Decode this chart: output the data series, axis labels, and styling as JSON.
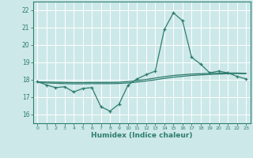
{
  "x": [
    0,
    1,
    2,
    3,
    4,
    5,
    6,
    7,
    8,
    9,
    10,
    11,
    12,
    13,
    14,
    15,
    16,
    17,
    18,
    19,
    20,
    21,
    22,
    23
  ],
  "y_main": [
    17.9,
    17.7,
    17.55,
    17.6,
    17.3,
    17.5,
    17.55,
    16.45,
    16.2,
    16.6,
    17.7,
    18.05,
    18.3,
    18.5,
    20.9,
    21.85,
    21.4,
    19.3,
    18.9,
    18.4,
    18.5,
    18.4,
    18.2,
    18.05
  ],
  "y_avg1": [
    17.85,
    17.82,
    17.8,
    17.78,
    17.77,
    17.77,
    17.78,
    17.78,
    17.78,
    17.79,
    17.82,
    17.87,
    17.93,
    18.0,
    18.08,
    18.15,
    18.2,
    18.25,
    18.28,
    18.31,
    18.33,
    18.35,
    18.36,
    18.35
  ],
  "y_avg2": [
    17.88,
    17.87,
    17.86,
    17.85,
    17.84,
    17.84,
    17.85,
    17.85,
    17.85,
    17.86,
    17.9,
    17.96,
    18.02,
    18.1,
    18.18,
    18.25,
    18.29,
    18.33,
    18.35,
    18.37,
    18.38,
    18.39,
    18.39,
    18.37
  ],
  "line_color": "#2e7d6e",
  "bg_color": "#cde8e8",
  "grid_color": "#ffffff",
  "xlabel": "Humidex (Indice chaleur)",
  "ylim": [
    15.5,
    22.5
  ],
  "yticks": [
    16,
    17,
    18,
    19,
    20,
    21,
    22
  ],
  "xticks": [
    0,
    1,
    2,
    3,
    4,
    5,
    6,
    7,
    8,
    9,
    10,
    11,
    12,
    13,
    14,
    15,
    16,
    17,
    18,
    19,
    20,
    21,
    22,
    23
  ],
  "marker": "+",
  "markersize": 3.5,
  "linewidth": 0.9
}
